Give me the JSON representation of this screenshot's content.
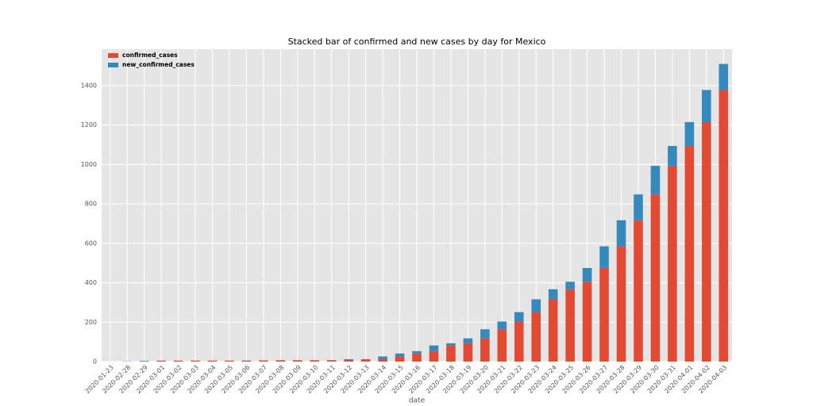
{
  "chart_data": {
    "type": "stacked-bar",
    "title": "Stacked bar of confirmed and new cases by day for Mexico",
    "x_label": "date",
    "categories": [
      "2020-01-23",
      "2020-02-28",
      "2020-02-29",
      "2020-03-01",
      "2020-03-02",
      "2020-03-03",
      "2020-03-04",
      "2020-03-05",
      "2020-03-06",
      "2020-03-07",
      "2020-03-08",
      "2020-03-09",
      "2020-03-10",
      "2020-03-11",
      "2020-03-12",
      "2020-03-13",
      "2020-03-14",
      "2020-03-15",
      "2020-03-16",
      "2020-03-17",
      "2020-03-18",
      "2020-03-19",
      "2020-03-20",
      "2020-03-21",
      "2020-03-22",
      "2020-03-23",
      "2020-03-24",
      "2020-03-25",
      "2020-03-26",
      "2020-03-27",
      "2020-03-28",
      "2020-03-29",
      "2020-03-30",
      "2020-03-31",
      "2020-04-01",
      "2020-04-02",
      "2020-04-03"
    ],
    "series": [
      {
        "name": "confirmed_cases",
        "color": "#E24A33",
        "values": [
          0,
          0,
          1,
          4,
          5,
          5,
          5,
          5,
          5,
          6,
          6,
          7,
          7,
          7,
          8,
          12,
          12,
          26,
          41,
          53,
          82,
          93,
          118,
          164,
          203,
          251,
          316,
          367,
          405,
          475,
          585,
          717,
          848,
          993,
          1094,
          1215,
          1378
        ]
      },
      {
        "name": "new_confirmed_cases",
        "color": "#348ABD",
        "values": [
          0,
          1,
          3,
          1,
          0,
          0,
          0,
          0,
          1,
          0,
          1,
          0,
          0,
          1,
          4,
          0,
          14,
          15,
          12,
          29,
          11,
          25,
          46,
          39,
          48,
          65,
          51,
          38,
          70,
          110,
          132,
          131,
          145,
          101,
          121,
          163,
          132
        ]
      }
    ],
    "ylim": [
      0,
      1585
    ],
    "yticks": [
      0,
      200,
      400,
      600,
      800,
      1000,
      1200,
      1400
    ],
    "grid": true,
    "legend": "upper left"
  }
}
